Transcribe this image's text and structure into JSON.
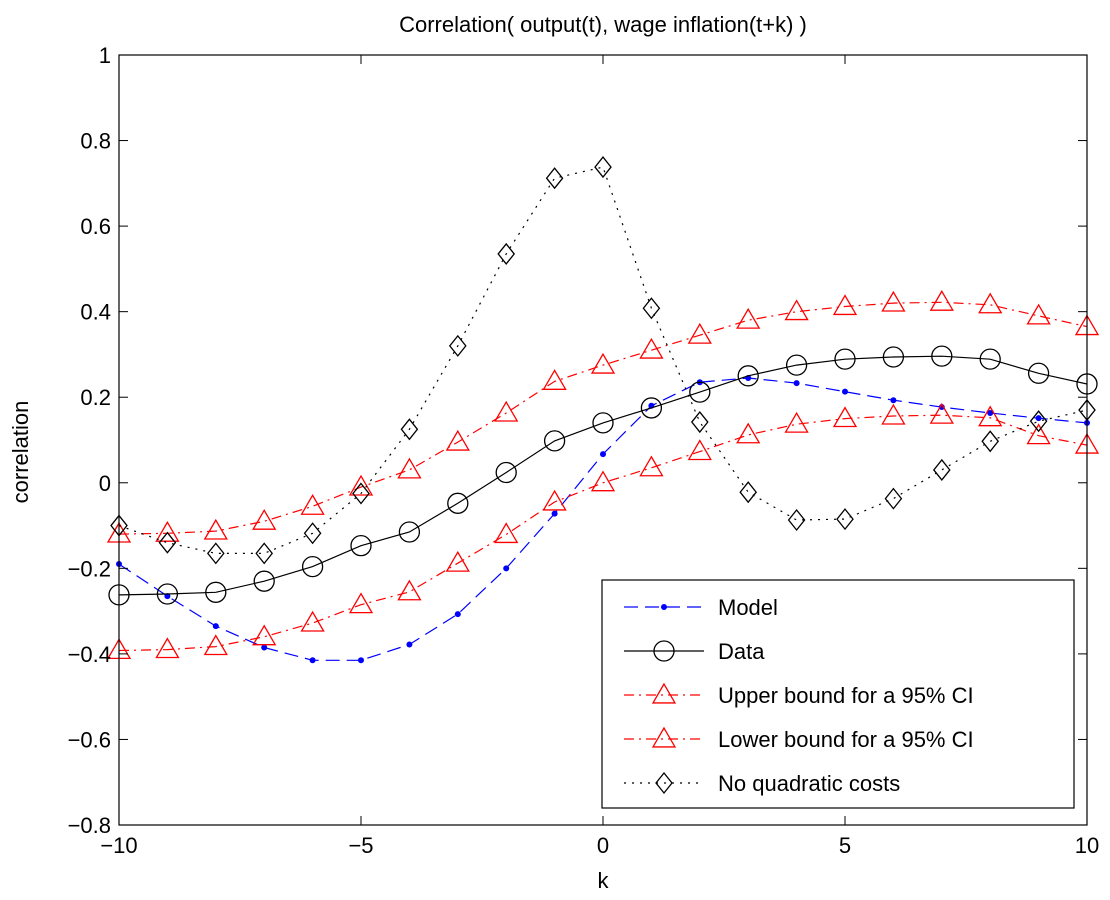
{
  "chart_data": {
    "type": "line",
    "title": "Correlation( output(t), wage inflation(t+k) )",
    "xlabel": "k",
    "ylabel": "correlation",
    "xlim": [
      -10,
      10
    ],
    "ylim": [
      -0.8,
      1
    ],
    "x_ticks": [
      -10,
      -5,
      0,
      5,
      10
    ],
    "x_tick_labels": [
      "−10",
      "−5",
      "0",
      "5",
      "10"
    ],
    "y_ticks": [
      -0.8,
      -0.6,
      -0.4,
      -0.2,
      0,
      0.2,
      0.4,
      0.6,
      0.8,
      1
    ],
    "y_tick_labels": [
      "−0.8",
      "−0.6",
      "−0.4",
      "−0.2",
      "0",
      "0.2",
      "0.4",
      "0.6",
      "0.8",
      "1"
    ],
    "grid": false,
    "legend_position": "bottom-right",
    "x": [
      -10,
      -9,
      -8,
      -7,
      -6,
      -5,
      -4,
      -3,
      -2,
      -1,
      0,
      1,
      2,
      3,
      4,
      5,
      6,
      7,
      8,
      9,
      10
    ],
    "series": [
      {
        "name": "Model",
        "color": "#0000ff",
        "dash": "dashed",
        "marker": "dot",
        "values": [
          -0.19,
          -0.265,
          -0.335,
          -0.385,
          -0.415,
          -0.415,
          -0.378,
          -0.307,
          -0.2,
          -0.072,
          0.067,
          0.18,
          0.235,
          0.245,
          0.233,
          0.213,
          0.193,
          0.177,
          0.163,
          0.151,
          0.14
        ]
      },
      {
        "name": "Data",
        "color": "#000000",
        "dash": "solid",
        "marker": "circle",
        "values": [
          -0.262,
          -0.26,
          -0.256,
          -0.23,
          -0.196,
          -0.147,
          -0.115,
          -0.048,
          0.024,
          0.098,
          0.14,
          0.175,
          0.212,
          0.25,
          0.275,
          0.289,
          0.294,
          0.296,
          0.289,
          0.256,
          0.231
        ]
      },
      {
        "name": "Upper bound for a 95% CI",
        "color": "#ff0000",
        "dash": "dashdot",
        "marker": "triangle",
        "values": [
          -0.12,
          -0.118,
          -0.113,
          -0.09,
          -0.055,
          -0.01,
          0.03,
          0.095,
          0.163,
          0.237,
          0.275,
          0.31,
          0.345,
          0.38,
          0.4,
          0.412,
          0.42,
          0.422,
          0.416,
          0.39,
          0.365
        ]
      },
      {
        "name": "Lower bound for a 95% CI",
        "color": "#ff0000",
        "dash": "dashdot",
        "marker": "triangle",
        "values": [
          -0.392,
          -0.39,
          -0.383,
          -0.36,
          -0.328,
          -0.285,
          -0.255,
          -0.188,
          -0.121,
          -0.045,
          0.0,
          0.035,
          0.073,
          0.112,
          0.137,
          0.15,
          0.156,
          0.158,
          0.152,
          0.11,
          0.088
        ]
      },
      {
        "name": "No quadratic costs",
        "color": "#000000",
        "dash": "dotted",
        "marker": "diamond",
        "values": [
          -0.1,
          -0.14,
          -0.165,
          -0.165,
          -0.118,
          -0.025,
          0.125,
          0.32,
          0.535,
          0.712,
          0.738,
          0.408,
          0.142,
          -0.022,
          -0.087,
          -0.085,
          -0.037,
          0.03,
          0.097,
          0.144,
          0.17
        ]
      }
    ]
  }
}
